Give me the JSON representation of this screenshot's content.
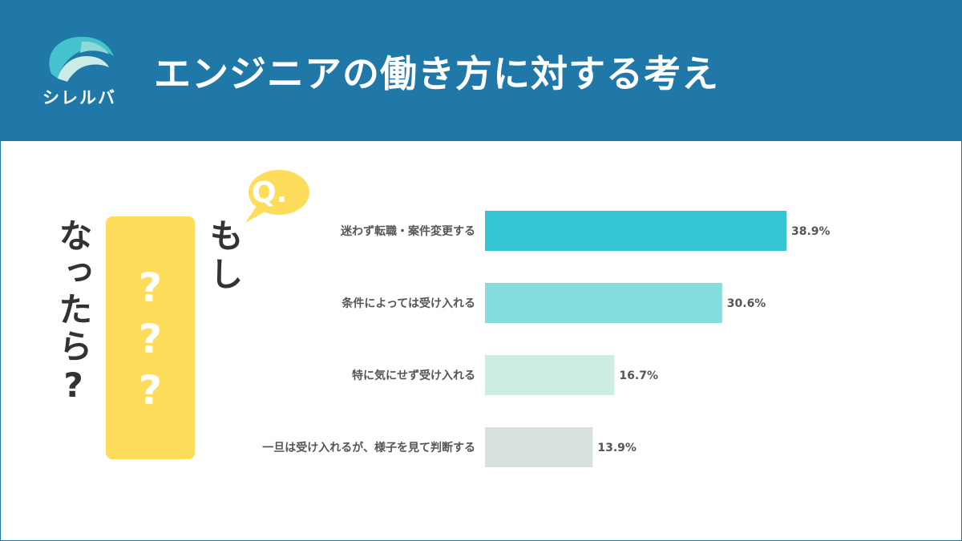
{
  "header": {
    "logo_text": "シレルバ",
    "title": "エンジニアの働き方に対する考え"
  },
  "question": {
    "bubble": "Q.",
    "line1": "もし",
    "box": "???",
    "line2": "なったら?"
  },
  "colors": {
    "header_bg": "#1f78a8",
    "card": "#ffdd5c",
    "text": "#333333"
  },
  "chart_data": {
    "type": "bar",
    "orientation": "horizontal",
    "categories": [
      "迷わず転職・案件変更する",
      "条件によっては受け入れる",
      "特に気にせず受け入れる",
      "一旦は受け入れるが、様子を見て判断する"
    ],
    "values": [
      38.9,
      30.6,
      16.7,
      13.9
    ],
    "value_labels": [
      "38.9%",
      "30.6%",
      "16.7%",
      "13.9%"
    ],
    "bar_colors": [
      "#35c5d3",
      "#84dcdd",
      "#cdece3",
      "#d8e1df"
    ],
    "unit": "%"
  }
}
